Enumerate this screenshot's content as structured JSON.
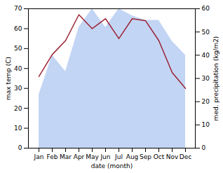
{
  "chart_data": {
    "type": "line",
    "categories": [
      "Jan",
      "Feb",
      "Mar",
      "Apr",
      "May",
      "Jun",
      "Jul",
      "Aug",
      "Sep",
      "Oct",
      "Nov",
      "Dec"
    ],
    "series": [
      {
        "type": "area",
        "axis": "y2",
        "color": "#b8cef2",
        "values": [
          23,
          40,
          33,
          52,
          60,
          52,
          60,
          57,
          55,
          55,
          46,
          40
        ]
      },
      {
        "type": "line",
        "color": "#9b2335",
        "values": [
          36,
          47,
          54,
          67,
          60,
          65,
          55,
          65,
          64,
          54,
          38,
          30
        ]
      }
    ],
    "xlabel": "date (month)",
    "ylabel": "max temp (C)",
    "y2label": "med. precipitation (kg/m2)",
    "ylim": [
      0,
      70
    ],
    "yticks": [
      0,
      10,
      20,
      30,
      40,
      50,
      60,
      70
    ],
    "y2lim": [
      0,
      60
    ],
    "y2ticks": [
      0,
      10,
      20,
      30,
      40,
      50,
      60
    ],
    "grid": false
  }
}
